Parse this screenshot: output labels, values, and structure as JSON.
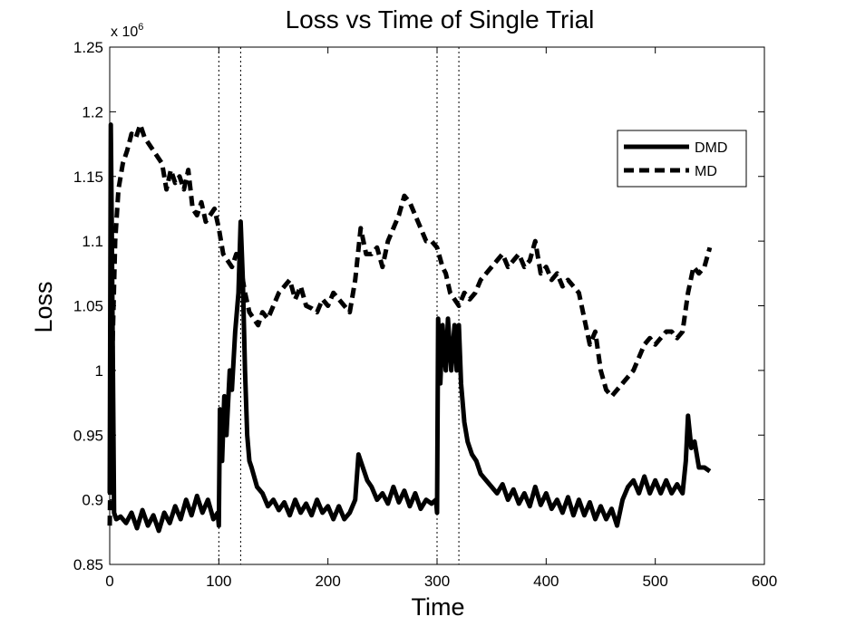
{
  "chart_data": {
    "type": "line",
    "title": "Loss vs Time of Single Trial",
    "xlabel": "Time",
    "ylabel": "Loss",
    "y_multiplier_label": "x 10",
    "y_multiplier_exponent": "6",
    "xlim": [
      0,
      600
    ],
    "ylim": [
      0.85,
      1.25
    ],
    "y_scale": 1000000,
    "x_ticks": [
      0,
      100,
      200,
      300,
      400,
      500,
      600
    ],
    "x_tick_labels": [
      "0",
      "100",
      "200",
      "300",
      "400",
      "500",
      "600"
    ],
    "y_ticks": [
      0.85,
      0.9,
      0.95,
      1.0,
      1.05,
      1.1,
      1.15,
      1.2,
      1.25
    ],
    "y_tick_labels": [
      "0.85",
      "0.9",
      "0.95",
      "1",
      "1.05",
      "1.1",
      "1.15",
      "1.2",
      "1.25"
    ],
    "grid": false,
    "legend_position": "top-right",
    "vertical_reference_lines": [
      100,
      120,
      300,
      320
    ],
    "series": [
      {
        "name": "DMD",
        "style": "solid",
        "color": "#000000",
        "points": [
          [
            0,
            0.905
          ],
          [
            1,
            1.19
          ],
          [
            2,
            1.1
          ],
          [
            4,
            0.89
          ],
          [
            6,
            0.885
          ],
          [
            10,
            0.887
          ],
          [
            15,
            0.882
          ],
          [
            20,
            0.89
          ],
          [
            25,
            0.878
          ],
          [
            30,
            0.892
          ],
          [
            35,
            0.88
          ],
          [
            40,
            0.888
          ],
          [
            45,
            0.876
          ],
          [
            50,
            0.89
          ],
          [
            55,
            0.882
          ],
          [
            60,
            0.895
          ],
          [
            65,
            0.885
          ],
          [
            70,
            0.9
          ],
          [
            75,
            0.888
          ],
          [
            80,
            0.903
          ],
          [
            85,
            0.89
          ],
          [
            90,
            0.9
          ],
          [
            95,
            0.885
          ],
          [
            99,
            0.89
          ],
          [
            100,
            0.88
          ],
          [
            101,
            0.97
          ],
          [
            103,
            0.93
          ],
          [
            105,
            0.98
          ],
          [
            107,
            0.95
          ],
          [
            110,
            1.0
          ],
          [
            112,
            0.985
          ],
          [
            115,
            1.03
          ],
          [
            118,
            1.06
          ],
          [
            120,
            1.115
          ],
          [
            122,
            1.07
          ],
          [
            124,
            1.0
          ],
          [
            126,
            0.95
          ],
          [
            128,
            0.93
          ],
          [
            130,
            0.925
          ],
          [
            135,
            0.91
          ],
          [
            140,
            0.905
          ],
          [
            145,
            0.895
          ],
          [
            150,
            0.9
          ],
          [
            155,
            0.892
          ],
          [
            160,
            0.898
          ],
          [
            165,
            0.888
          ],
          [
            170,
            0.9
          ],
          [
            175,
            0.89
          ],
          [
            180,
            0.897
          ],
          [
            185,
            0.888
          ],
          [
            190,
            0.9
          ],
          [
            195,
            0.89
          ],
          [
            200,
            0.895
          ],
          [
            205,
            0.885
          ],
          [
            210,
            0.895
          ],
          [
            215,
            0.885
          ],
          [
            220,
            0.89
          ],
          [
            225,
            0.9
          ],
          [
            228,
            0.935
          ],
          [
            232,
            0.925
          ],
          [
            236,
            0.915
          ],
          [
            240,
            0.91
          ],
          [
            245,
            0.9
          ],
          [
            250,
            0.905
          ],
          [
            255,
            0.897
          ],
          [
            260,
            0.91
          ],
          [
            265,
            0.898
          ],
          [
            270,
            0.907
          ],
          [
            275,
            0.895
          ],
          [
            280,
            0.905
          ],
          [
            285,
            0.893
          ],
          [
            290,
            0.9
          ],
          [
            295,
            0.897
          ],
          [
            299,
            0.9
          ],
          [
            300,
            0.89
          ],
          [
            301,
            1.04
          ],
          [
            303,
            0.99
          ],
          [
            305,
            1.035
          ],
          [
            308,
            1.0
          ],
          [
            310,
            1.04
          ],
          [
            313,
            1.0
          ],
          [
            316,
            1.035
          ],
          [
            318,
            1.0
          ],
          [
            320,
            1.035
          ],
          [
            322,
            0.99
          ],
          [
            325,
            0.96
          ],
          [
            328,
            0.945
          ],
          [
            332,
            0.935
          ],
          [
            336,
            0.93
          ],
          [
            340,
            0.92
          ],
          [
            345,
            0.915
          ],
          [
            350,
            0.91
          ],
          [
            355,
            0.905
          ],
          [
            360,
            0.912
          ],
          [
            365,
            0.9
          ],
          [
            370,
            0.908
          ],
          [
            375,
            0.897
          ],
          [
            380,
            0.905
          ],
          [
            385,
            0.895
          ],
          [
            390,
            0.91
          ],
          [
            395,
            0.896
          ],
          [
            400,
            0.905
          ],
          [
            405,
            0.893
          ],
          [
            410,
            0.9
          ],
          [
            415,
            0.89
          ],
          [
            420,
            0.902
          ],
          [
            425,
            0.888
          ],
          [
            430,
            0.9
          ],
          [
            435,
            0.888
          ],
          [
            440,
            0.898
          ],
          [
            445,
            0.885
          ],
          [
            450,
            0.895
          ],
          [
            455,
            0.885
          ],
          [
            460,
            0.893
          ],
          [
            465,
            0.88
          ],
          [
            470,
            0.9
          ],
          [
            475,
            0.91
          ],
          [
            480,
            0.915
          ],
          [
            485,
            0.905
          ],
          [
            490,
            0.918
          ],
          [
            495,
            0.905
          ],
          [
            500,
            0.915
          ],
          [
            505,
            0.905
          ],
          [
            510,
            0.915
          ],
          [
            515,
            0.905
          ],
          [
            520,
            0.912
          ],
          [
            525,
            0.905
          ],
          [
            528,
            0.93
          ],
          [
            530,
            0.965
          ],
          [
            533,
            0.94
          ],
          [
            536,
            0.945
          ],
          [
            540,
            0.925
          ],
          [
            545,
            0.925
          ],
          [
            550,
            0.922
          ]
        ]
      },
      {
        "name": "MD",
        "style": "dashed",
        "color": "#000000",
        "points": [
          [
            0,
            0.88
          ],
          [
            2,
            1.0
          ],
          [
            5,
            1.1
          ],
          [
            8,
            1.14
          ],
          [
            12,
            1.16
          ],
          [
            16,
            1.17
          ],
          [
            20,
            1.183
          ],
          [
            24,
            1.18
          ],
          [
            28,
            1.19
          ],
          [
            32,
            1.18
          ],
          [
            36,
            1.175
          ],
          [
            40,
            1.17
          ],
          [
            44,
            1.165
          ],
          [
            48,
            1.16
          ],
          [
            52,
            1.14
          ],
          [
            56,
            1.155
          ],
          [
            60,
            1.145
          ],
          [
            64,
            1.15
          ],
          [
            68,
            1.14
          ],
          [
            72,
            1.155
          ],
          [
            76,
            1.125
          ],
          [
            80,
            1.12
          ],
          [
            84,
            1.13
          ],
          [
            88,
            1.115
          ],
          [
            92,
            1.12
          ],
          [
            96,
            1.125
          ],
          [
            100,
            1.11
          ],
          [
            104,
            1.09
          ],
          [
            108,
            1.085
          ],
          [
            112,
            1.08
          ],
          [
            116,
            1.09
          ],
          [
            120,
            1.08
          ],
          [
            124,
            1.06
          ],
          [
            128,
            1.045
          ],
          [
            132,
            1.04
          ],
          [
            136,
            1.035
          ],
          [
            140,
            1.045
          ],
          [
            145,
            1.04
          ],
          [
            150,
            1.05
          ],
          [
            155,
            1.06
          ],
          [
            160,
            1.065
          ],
          [
            165,
            1.07
          ],
          [
            170,
            1.055
          ],
          [
            175,
            1.065
          ],
          [
            180,
            1.05
          ],
          [
            185,
            1.048
          ],
          [
            190,
            1.045
          ],
          [
            195,
            1.055
          ],
          [
            200,
            1.05
          ],
          [
            205,
            1.06
          ],
          [
            210,
            1.055
          ],
          [
            215,
            1.05
          ],
          [
            220,
            1.045
          ],
          [
            225,
            1.07
          ],
          [
            230,
            1.11
          ],
          [
            235,
            1.09
          ],
          [
            240,
            1.09
          ],
          [
            245,
            1.095
          ],
          [
            250,
            1.08
          ],
          [
            255,
            1.1
          ],
          [
            260,
            1.11
          ],
          [
            265,
            1.12
          ],
          [
            270,
            1.135
          ],
          [
            275,
            1.13
          ],
          [
            280,
            1.12
          ],
          [
            285,
            1.11
          ],
          [
            290,
            1.1
          ],
          [
            295,
            1.1
          ],
          [
            300,
            1.095
          ],
          [
            305,
            1.08
          ],
          [
            308,
            1.075
          ],
          [
            312,
            1.06
          ],
          [
            316,
            1.055
          ],
          [
            320,
            1.05
          ],
          [
            325,
            1.06
          ],
          [
            330,
            1.055
          ],
          [
            335,
            1.06
          ],
          [
            340,
            1.07
          ],
          [
            345,
            1.075
          ],
          [
            350,
            1.08
          ],
          [
            355,
            1.085
          ],
          [
            360,
            1.09
          ],
          [
            365,
            1.08
          ],
          [
            370,
            1.085
          ],
          [
            375,
            1.09
          ],
          [
            380,
            1.08
          ],
          [
            385,
            1.085
          ],
          [
            390,
            1.1
          ],
          [
            395,
            1.075
          ],
          [
            400,
            1.08
          ],
          [
            405,
            1.07
          ],
          [
            410,
            1.075
          ],
          [
            415,
            1.065
          ],
          [
            420,
            1.07
          ],
          [
            425,
            1.065
          ],
          [
            430,
            1.06
          ],
          [
            435,
            1.04
          ],
          [
            440,
            1.02
          ],
          [
            445,
            1.03
          ],
          [
            450,
            1.0
          ],
          [
            455,
            0.985
          ],
          [
            460,
            0.98
          ],
          [
            465,
            0.985
          ],
          [
            470,
            0.99
          ],
          [
            475,
            0.995
          ],
          [
            480,
            1.0
          ],
          [
            485,
            1.01
          ],
          [
            490,
            1.02
          ],
          [
            495,
            1.025
          ],
          [
            500,
            1.02
          ],
          [
            505,
            1.025
          ],
          [
            510,
            1.03
          ],
          [
            515,
            1.03
          ],
          [
            520,
            1.025
          ],
          [
            525,
            1.03
          ],
          [
            530,
            1.06
          ],
          [
            535,
            1.08
          ],
          [
            540,
            1.075
          ],
          [
            545,
            1.08
          ],
          [
            550,
            1.095
          ]
        ]
      }
    ]
  }
}
